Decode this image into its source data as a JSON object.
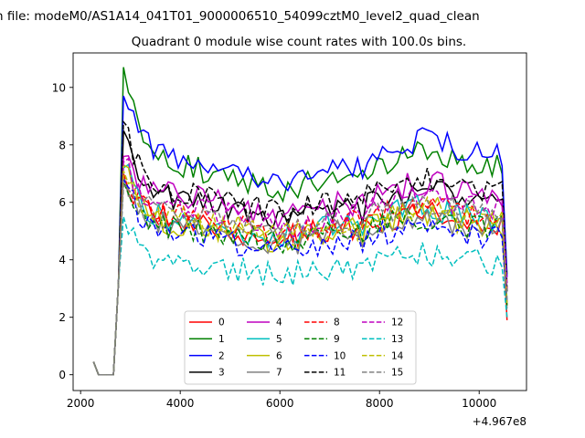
{
  "chart_data": {
    "type": "line",
    "suptitle": "n file: modeM0/AS1A14_041T01_9000006510_54099cztM0_level2_quad_clean",
    "title": "Quadrant 0 module wise count rates with 100.0s bins.",
    "xlabel": "",
    "ylabel": "",
    "offset_label": "+4.967e8",
    "xlim": [
      1850,
      10950
    ],
    "ylim": [
      -0.55,
      11.2
    ],
    "xticks": [
      2000,
      4000,
      6000,
      8000,
      10000
    ],
    "yticks": [
      0,
      2,
      4,
      6,
      8,
      10
    ],
    "x_start": 2260,
    "x_end": 10560,
    "x_step": 100,
    "grid": false,
    "legend": {
      "placement": "lower center",
      "columns": 4
    },
    "series": [
      {
        "name": "0",
        "color": "#ff0000",
        "style": "solid",
        "level": 5.3,
        "peak": 7.0,
        "tail": 1.9
      },
      {
        "name": "1",
        "color": "#008000",
        "style": "solid",
        "level": 7.2,
        "peak": 10.7,
        "tail": 3.5
      },
      {
        "name": "2",
        "color": "#0000ff",
        "style": "solid",
        "level": 7.6,
        "peak": 9.7,
        "tail": 3.4
      },
      {
        "name": "3",
        "color": "#000000",
        "style": "solid",
        "level": 6.0,
        "peak": 8.5,
        "tail": 2.9
      },
      {
        "name": "4",
        "color": "#bf00bf",
        "style": "solid",
        "level": 6.2,
        "peak": 7.6,
        "tail": 3.2
      },
      {
        "name": "5",
        "color": "#00bfbf",
        "style": "solid",
        "level": 5.4,
        "peak": 7.2,
        "tail": 2.6
      },
      {
        "name": "6",
        "color": "#bfbf00",
        "style": "solid",
        "level": 5.2,
        "peak": 7.3,
        "tail": 2.4
      },
      {
        "name": "7",
        "color": "#808080",
        "style": "solid",
        "level": 5.1,
        "peak": 7.0,
        "tail": 2.3
      },
      {
        "name": "8",
        "color": "#ff0000",
        "style": "dashed",
        "level": 5.5,
        "peak": 7.0,
        "tail": 2.5
      },
      {
        "name": "9",
        "color": "#008000",
        "style": "dashed",
        "level": 5.1,
        "peak": 6.7,
        "tail": 2.4
      },
      {
        "name": "10",
        "color": "#0000ff",
        "style": "dashed",
        "level": 4.8,
        "peak": 6.8,
        "tail": 2.5
      },
      {
        "name": "11",
        "color": "#000000",
        "style": "dashed",
        "level": 6.3,
        "peak": 8.8,
        "tail": 3.0
      },
      {
        "name": "12",
        "color": "#bf00bf",
        "style": "dashed",
        "level": 5.8,
        "peak": 7.4,
        "tail": 3.0
      },
      {
        "name": "13",
        "color": "#00bfbf",
        "style": "dashed",
        "level": 3.9,
        "peak": 5.5,
        "tail": 2.0
      },
      {
        "name": "14",
        "color": "#bfbf00",
        "style": "dashed",
        "level": 5.4,
        "peak": 7.1,
        "tail": 2.5
      },
      {
        "name": "15",
        "color": "#808080",
        "style": "dashed",
        "level": 5.6,
        "peak": 6.6,
        "tail": 2.6
      }
    ]
  }
}
